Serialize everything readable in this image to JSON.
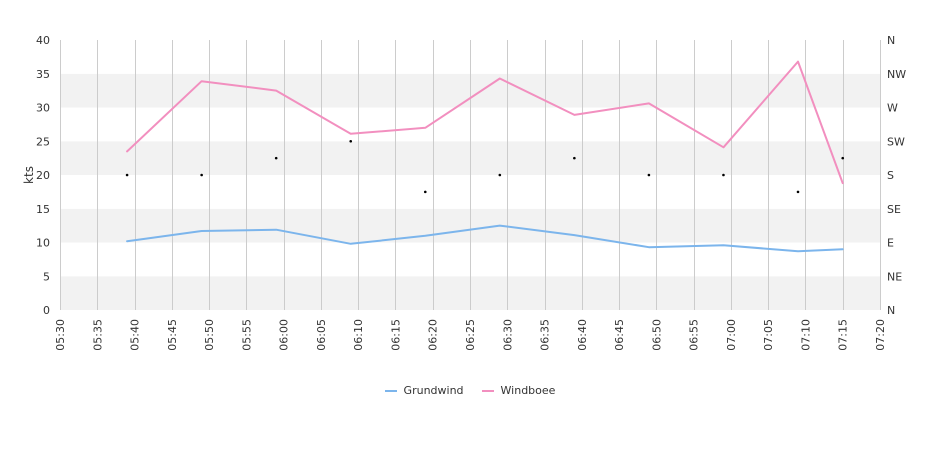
{
  "colors": {
    "grundwind": "#7cb5ec",
    "windboee": "#f28fbf",
    "band": "#f2f2f2",
    "grid": "#cccccc",
    "direction_marker": "#000000"
  },
  "chart_data": {
    "type": "line",
    "ylabel": "kts",
    "ylim": [
      0,
      40
    ],
    "y_ticks": [
      "0",
      "5",
      "10",
      "15",
      "20",
      "25",
      "30",
      "35",
      "40"
    ],
    "x_ticks": [
      "05:30",
      "05:35",
      "05:40",
      "05:45",
      "05:50",
      "05:55",
      "06:00",
      "06:05",
      "06:10",
      "06:15",
      "06:20",
      "06:25",
      "06:30",
      "06:35",
      "06:40",
      "06:45",
      "06:50",
      "06:55",
      "07:00",
      "07:05",
      "07:10",
      "07:15",
      "07:20"
    ],
    "x_range": [
      "05:30",
      "07:20"
    ],
    "right_axis_ticks": [
      "N",
      "NE",
      "E",
      "SE",
      "S",
      "SW",
      "W",
      "NW",
      "N"
    ],
    "grid": true,
    "legend_position": "bottom-center",
    "series": [
      {
        "name": "Grundwind",
        "color_key": "grundwind",
        "x": [
          "05:39",
          "05:49",
          "05:59",
          "06:09",
          "06:19",
          "06:29",
          "06:39",
          "06:49",
          "06:59",
          "07:09",
          "07:15"
        ],
        "values": [
          10.2,
          11.7,
          11.9,
          9.8,
          11.0,
          12.5,
          11.1,
          9.3,
          9.6,
          8.7,
          9.0
        ]
      },
      {
        "name": "Windboee",
        "color_key": "windboee",
        "x": [
          "05:39",
          "05:49",
          "05:59",
          "06:09",
          "06:19",
          "06:29",
          "06:39",
          "06:49",
          "06:59",
          "07:09",
          "07:15"
        ],
        "values": [
          23.5,
          33.9,
          32.5,
          26.1,
          27.0,
          34.3,
          28.9,
          30.6,
          24.1,
          36.8,
          18.8
        ]
      }
    ],
    "wind_direction": {
      "x": [
        "05:39",
        "05:49",
        "05:59",
        "06:09",
        "06:19",
        "06:29",
        "06:39",
        "06:49",
        "06:59",
        "07:09",
        "07:15"
      ],
      "values": [
        "S",
        "S",
        "SSW",
        "SW",
        "SSE",
        "S",
        "SSW",
        "S",
        "S",
        "SSE",
        "SSW"
      ]
    }
  }
}
